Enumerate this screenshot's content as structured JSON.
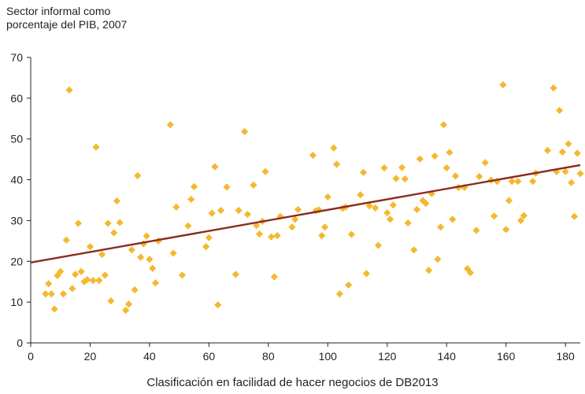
{
  "chart_data": {
    "type": "scatter",
    "ylabel_lines": [
      "Sector informal como",
      "porcentaje del PIB, 2007"
    ],
    "xlabel": "Clasificación en facilidad de hacer negocios de DB2013",
    "xlim": [
      0,
      185
    ],
    "ylim": [
      0,
      70
    ],
    "xticks": [
      0,
      20,
      40,
      60,
      80,
      100,
      120,
      140,
      160,
      180
    ],
    "yticks": [
      0,
      10,
      20,
      30,
      40,
      50,
      60,
      70
    ],
    "grid": false,
    "colors": {
      "points": "#f5b82e",
      "trendline": "#8b2a1e",
      "axis": "#231f20"
    },
    "points": [
      [
        5,
        12
      ],
      [
        6,
        14.5
      ],
      [
        7,
        12
      ],
      [
        8,
        8.3
      ],
      [
        9,
        16.5
      ],
      [
        10,
        17.5
      ],
      [
        11,
        12
      ],
      [
        12,
        25.2
      ],
      [
        13,
        62
      ],
      [
        14,
        13.3
      ],
      [
        15,
        16.8
      ],
      [
        16,
        29.3
      ],
      [
        17,
        17.5
      ],
      [
        18,
        15
      ],
      [
        19,
        15.5
      ],
      [
        20,
        23.6
      ],
      [
        21,
        15.3
      ],
      [
        22,
        48
      ],
      [
        23,
        15.3
      ],
      [
        24,
        21.7
      ],
      [
        25,
        16.6
      ],
      [
        26,
        29.3
      ],
      [
        27,
        10.3
      ],
      [
        28,
        27
      ],
      [
        29,
        34.8
      ],
      [
        30,
        29.5
      ],
      [
        32,
        8
      ],
      [
        33,
        9.5
      ],
      [
        34,
        22.8
      ],
      [
        35,
        13
      ],
      [
        36,
        41
      ],
      [
        37,
        21
      ],
      [
        38,
        24.3
      ],
      [
        39,
        26.2
      ],
      [
        40,
        20.5
      ],
      [
        41,
        18.3
      ],
      [
        42,
        14.7
      ],
      [
        43,
        25
      ],
      [
        47,
        53.5
      ],
      [
        48,
        22
      ],
      [
        49,
        33.3
      ],
      [
        51,
        16.6
      ],
      [
        53,
        28.7
      ],
      [
        54,
        35.2
      ],
      [
        55,
        38.3
      ],
      [
        59,
        23.6
      ],
      [
        60,
        25.8
      ],
      [
        61,
        31.8
      ],
      [
        62,
        43.2
      ],
      [
        63,
        9.3
      ],
      [
        64,
        32.5
      ],
      [
        66,
        38.2
      ],
      [
        69,
        16.8
      ],
      [
        70,
        32.5
      ],
      [
        72,
        51.8
      ],
      [
        73,
        31.5
      ],
      [
        75,
        38.7
      ],
      [
        76,
        28.8
      ],
      [
        77,
        26.7
      ],
      [
        78,
        29.8
      ],
      [
        79,
        42
      ],
      [
        81,
        26
      ],
      [
        82,
        16.2
      ],
      [
        83,
        26.3
      ],
      [
        84,
        31
      ],
      [
        88,
        28.4
      ],
      [
        89,
        30.3
      ],
      [
        90,
        32.7
      ],
      [
        95,
        46
      ],
      [
        96,
        32.4
      ],
      [
        97,
        32.6
      ],
      [
        98,
        26.3
      ],
      [
        99,
        28.4
      ],
      [
        100,
        35.8
      ],
      [
        102,
        47.8
      ],
      [
        103,
        43.8
      ],
      [
        104,
        12
      ],
      [
        105,
        33
      ],
      [
        106,
        33.3
      ],
      [
        107,
        14.2
      ],
      [
        108,
        26.6
      ],
      [
        111,
        36.3
      ],
      [
        112,
        41.8
      ],
      [
        113,
        17
      ],
      [
        114,
        33.6
      ],
      [
        116,
        33.1
      ],
      [
        117,
        23.9
      ],
      [
        119,
        42.9
      ],
      [
        120,
        31.9
      ],
      [
        121,
        30.3
      ],
      [
        122,
        33.8
      ],
      [
        123,
        40.3
      ],
      [
        125,
        43
      ],
      [
        126,
        40.2
      ],
      [
        127,
        29.4
      ],
      [
        129,
        22.8
      ],
      [
        130,
        32.7
      ],
      [
        131,
        45.1
      ],
      [
        132,
        34.9
      ],
      [
        133,
        34.2
      ],
      [
        134,
        17.8
      ],
      [
        135,
        36.6
      ],
      [
        136,
        45.8
      ],
      [
        137,
        20.5
      ],
      [
        138,
        28.4
      ],
      [
        139,
        53.5
      ],
      [
        140,
        42.9
      ],
      [
        141,
        46.7
      ],
      [
        142,
        30.3
      ],
      [
        143,
        40.9
      ],
      [
        144,
        38.1
      ],
      [
        146,
        38.1
      ],
      [
        147,
        18.2
      ],
      [
        148,
        17.2
      ],
      [
        150,
        27.6
      ],
      [
        151,
        40.8
      ],
      [
        153,
        44.2
      ],
      [
        155,
        39.9
      ],
      [
        156,
        31.1
      ],
      [
        157,
        39.6
      ],
      [
        159,
        63.3
      ],
      [
        160,
        27.8
      ],
      [
        161,
        34.9
      ],
      [
        162,
        39.6
      ],
      [
        164,
        39.6
      ],
      [
        165,
        30
      ],
      [
        166,
        31.2
      ],
      [
        169,
        39.6
      ],
      [
        170,
        41.6
      ],
      [
        174,
        47.2
      ],
      [
        176,
        62.5
      ],
      [
        177,
        42
      ],
      [
        178,
        57
      ],
      [
        179,
        46.8
      ],
      [
        180,
        42
      ],
      [
        181,
        48.8
      ],
      [
        182,
        39.3
      ],
      [
        183,
        31
      ],
      [
        184,
        46.5
      ],
      [
        185,
        41.5
      ]
    ],
    "trendline": {
      "x": [
        0,
        185
      ],
      "y": [
        19.7,
        43.6
      ]
    }
  }
}
